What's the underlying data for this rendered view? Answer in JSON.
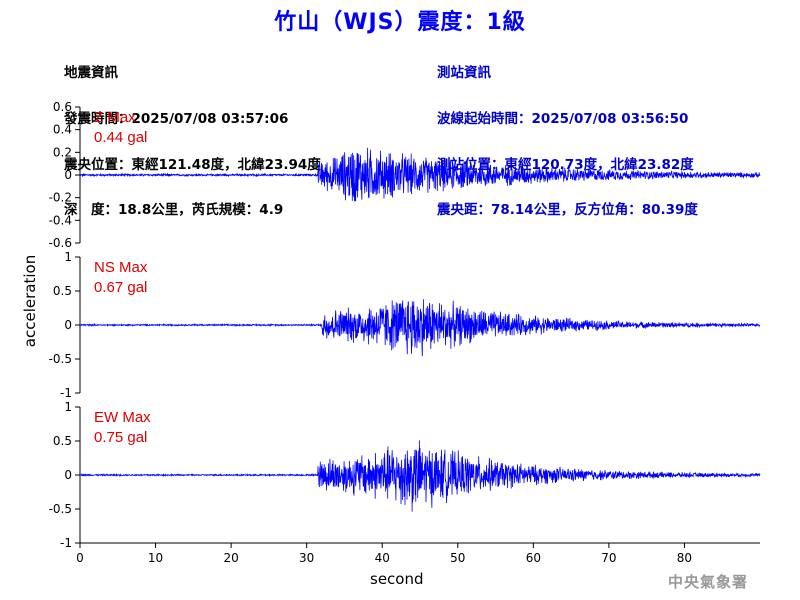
{
  "title": "竹山（WJS）震度：1級",
  "quake_info": {
    "heading": "地震資訊",
    "time": "發震時間：2025/07/08 03:57:06",
    "location": "震央位置：東經121.48度，北緯23.94度",
    "depth_mag": "深　度：18.8公里，芮氏規模：4.9"
  },
  "station_info": {
    "heading": "測站資訊",
    "wave_start": "波線起始時間：2025/07/08 03:56:50",
    "location": "測站位置：東經120.73度，北緯23.82度",
    "distance": "震央距：78.14公里，反方位角：80.39度"
  },
  "watermark": "中央氣象署",
  "colors": {
    "trace": "#0000ff",
    "max_label": "#e00000",
    "title": "#0000ff"
  },
  "chart_data": [
    {
      "type": "line",
      "component": "Z",
      "max_label": "Z Max",
      "max_value": "0.44 gal",
      "ylim": [
        -0.6,
        0.6
      ],
      "yticks": [
        -0.6,
        -0.4,
        -0.2,
        0,
        0.2,
        0.4,
        0.6
      ],
      "ytick_labels": [
        "-0.6",
        "-0.4",
        "-0.2",
        "0",
        "0.2",
        "0.4",
        "0.6"
      ],
      "xlim": [
        0,
        90
      ],
      "envelope": {
        "onset": 31.5,
        "peak_time": 36,
        "peak_amp": 0.3,
        "noise": 0.01,
        "decay": 18
      }
    },
    {
      "type": "line",
      "component": "NS",
      "max_label": "NS Max",
      "max_value": "0.67 gal",
      "ylim": [
        -1,
        1
      ],
      "yticks": [
        -1,
        -0.5,
        0,
        0.5,
        1
      ],
      "ytick_labels": [
        "-1",
        "-0.5",
        "0",
        "0.5",
        "1"
      ],
      "xlim": [
        0,
        90
      ],
      "envelope": {
        "onset": 32,
        "peak_time": 44,
        "peak_amp": 0.55,
        "noise": 0.012,
        "decay": 12
      }
    },
    {
      "type": "line",
      "component": "EW",
      "max_label": "EW Max",
      "max_value": "0.75 gal",
      "ylim": [
        -1,
        1
      ],
      "yticks": [
        -1,
        -0.5,
        0,
        0.5,
        1
      ],
      "ytick_labels": [
        "-1",
        "-0.5",
        "0",
        "0.5",
        "1"
      ],
      "xlim": [
        0,
        90
      ],
      "envelope": {
        "onset": 31.5,
        "peak_time": 44,
        "peak_amp": 0.6,
        "noise": 0.012,
        "decay": 12
      }
    }
  ],
  "x_axis": {
    "label": "second",
    "ticks": [
      0,
      10,
      20,
      30,
      40,
      50,
      60,
      70,
      80
    ],
    "tick_labels": [
      "0",
      "10",
      "20",
      "30",
      "40",
      "50",
      "60",
      "70",
      "80"
    ]
  },
  "y_axis_label": "acceleration"
}
